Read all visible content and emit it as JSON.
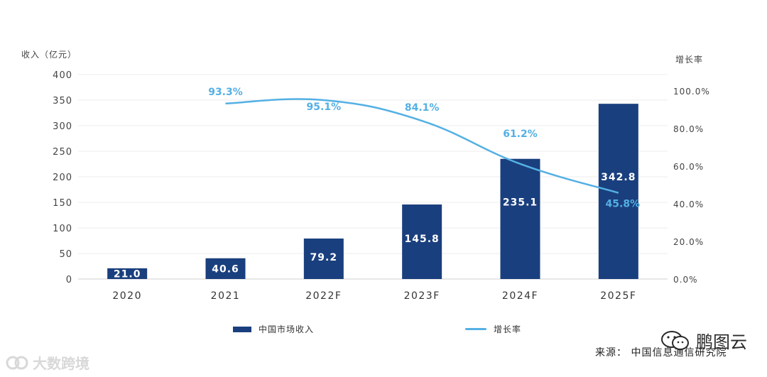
{
  "chart_data": {
    "type": "bar+line",
    "categories": [
      "2020",
      "2021",
      "2022F",
      "2023F",
      "2024F",
      "2025F"
    ],
    "series": [
      {
        "name": "中国市场收入",
        "type": "bar",
        "axis": "left",
        "values": [
          21.0,
          40.6,
          79.2,
          145.8,
          235.1,
          342.8
        ],
        "labels": [
          "21.0",
          "40.6",
          "79.2",
          "145.8",
          "235.1",
          "342.8"
        ],
        "color": "#1a3f7e"
      },
      {
        "name": "增长率",
        "type": "line",
        "axis": "right",
        "values": [
          null,
          93.3,
          95.1,
          84.1,
          61.2,
          45.8
        ],
        "labels": [
          "",
          "93.3%",
          "95.1%",
          "84.1%",
          "61.2%",
          "45.8%"
        ],
        "color": "#54b0e4"
      }
    ],
    "ylabel_left": "收入（亿元）",
    "ylabel_right": "增长率",
    "ylim_left": [
      0,
      400
    ],
    "yticks_left": [
      "0",
      "50",
      "100",
      "150",
      "200",
      "250",
      "300",
      "350",
      "400"
    ],
    "ylim_right": [
      0,
      100
    ],
    "yticks_right": [
      "0.0%",
      "20.0%",
      "40.0%",
      "60.0%",
      "80.0%",
      "100.0%"
    ],
    "grid": true,
    "legend_position": "bottom"
  },
  "source": "来源：  中国信息通信研究院",
  "watermark_left": "大数跨境",
  "watermark_right": "鹏图云"
}
